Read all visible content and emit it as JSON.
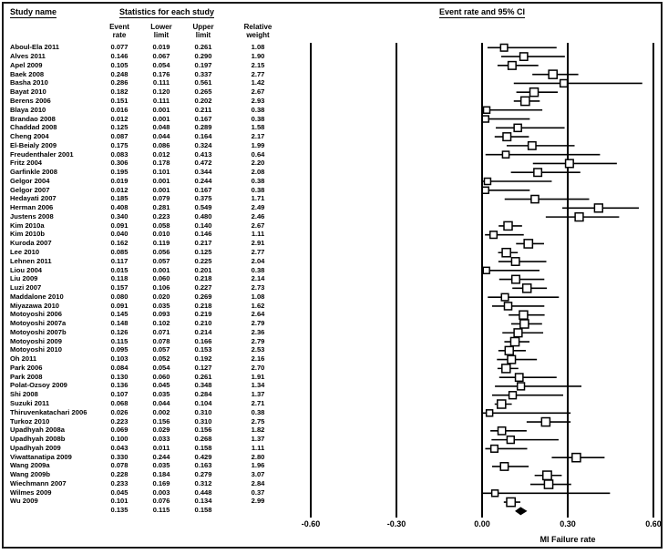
{
  "header": {
    "study_name": "Study name",
    "stats_title": "Statistics for each study",
    "plot_title": "Event rate and 95% CI",
    "columns": {
      "event_rate": "Event\nrate",
      "lower_limit": "Lower\nlimit",
      "upper_limit": "Upper\nlimit",
      "relative_weight": "Relative\nweight"
    }
  },
  "colors": {
    "marker_border": "#000000",
    "marker_fill": "#ffffff",
    "diamond_fill": "#000000",
    "axis_line": "#000000"
  },
  "chart_data": {
    "type": "forest",
    "title": "Event rate and 95% CI",
    "xlabel": "MI Failure rate",
    "xlim": [
      -0.6,
      0.6
    ],
    "x_ticks": [
      -0.6,
      -0.3,
      0.0,
      0.3,
      0.6
    ],
    "x_tick_labels": [
      "-0.60",
      "-0.30",
      "0.00",
      "0.30",
      "0.60"
    ],
    "columns": [
      "Study name",
      "Event rate",
      "Lower limit",
      "Upper limit",
      "Relative weight"
    ],
    "studies": [
      {
        "name": "Aboul-Ela 2011",
        "rate": "0.077",
        "lower": "0.019",
        "upper": "0.261",
        "weight": "1.08"
      },
      {
        "name": "Alves 2011",
        "rate": "0.146",
        "lower": "0.067",
        "upper": "0.290",
        "weight": "1.90"
      },
      {
        "name": "Apel 2009",
        "rate": "0.105",
        "lower": "0.054",
        "upper": "0.197",
        "weight": "2.15"
      },
      {
        "name": "Baek 2008",
        "rate": "0.248",
        "lower": "0.176",
        "upper": "0.337",
        "weight": "2.77"
      },
      {
        "name": "Basha 2010",
        "rate": "0.286",
        "lower": "0.111",
        "upper": "0.561",
        "weight": "1.42"
      },
      {
        "name": "Bayat 2010",
        "rate": "0.182",
        "lower": "0.120",
        "upper": "0.265",
        "weight": "2.67"
      },
      {
        "name": "Berens 2006",
        "rate": "0.151",
        "lower": "0.111",
        "upper": "0.202",
        "weight": "2.93"
      },
      {
        "name": "Blaya 2010",
        "rate": "0.016",
        "lower": "0.001",
        "upper": "0.211",
        "weight": "0.38"
      },
      {
        "name": "Brandao 2008",
        "rate": "0.012",
        "lower": "0.001",
        "upper": "0.167",
        "weight": "0.38"
      },
      {
        "name": "Chaddad 2008",
        "rate": "0.125",
        "lower": "0.048",
        "upper": "0.289",
        "weight": "1.58"
      },
      {
        "name": "Cheng 2004",
        "rate": "0.087",
        "lower": "0.044",
        "upper": "0.164",
        "weight": "2.17"
      },
      {
        "name": "El-Beialy 2009",
        "rate": "0.175",
        "lower": "0.086",
        "upper": "0.324",
        "weight": "1.99"
      },
      {
        "name": "Freudenthaler 2001",
        "rate": "0.083",
        "lower": "0.012",
        "upper": "0.413",
        "weight": "0.64"
      },
      {
        "name": "Fritz 2004",
        "rate": "0.306",
        "lower": "0.178",
        "upper": "0.472",
        "weight": "2.20"
      },
      {
        "name": "Garfinkle 2008",
        "rate": "0.195",
        "lower": "0.101",
        "upper": "0.344",
        "weight": "2.08"
      },
      {
        "name": "Gelgor 2004",
        "rate": "0.019",
        "lower": "0.001",
        "upper": "0.244",
        "weight": "0.38"
      },
      {
        "name": "Gelgor 2007",
        "rate": "0.012",
        "lower": "0.001",
        "upper": "0.167",
        "weight": "0.38"
      },
      {
        "name": "Hedayati 2007",
        "rate": "0.185",
        "lower": "0.079",
        "upper": "0.375",
        "weight": "1.71"
      },
      {
        "name": "Herman 2006",
        "rate": "0.408",
        "lower": "0.281",
        "upper": "0.549",
        "weight": "2.49"
      },
      {
        "name": "Justens 2008",
        "rate": "0.340",
        "lower": "0.223",
        "upper": "0.480",
        "weight": "2.46"
      },
      {
        "name": "Kim 2010a",
        "rate": "0.091",
        "lower": "0.058",
        "upper": "0.140",
        "weight": "2.67"
      },
      {
        "name": "Kim 2010b",
        "rate": "0.040",
        "lower": "0.010",
        "upper": "0.146",
        "weight": "1.11"
      },
      {
        "name": "Kuroda 2007",
        "rate": "0.162",
        "lower": "0.119",
        "upper": "0.217",
        "weight": "2.91"
      },
      {
        "name": "Lee 2010",
        "rate": "0.085",
        "lower": "0.056",
        "upper": "0.125",
        "weight": "2.77"
      },
      {
        "name": "Lehnen 2011",
        "rate": "0.117",
        "lower": "0.057",
        "upper": "0.225",
        "weight": "2.04"
      },
      {
        "name": "Liou 2004",
        "rate": "0.015",
        "lower": "0.001",
        "upper": "0.201",
        "weight": "0.38"
      },
      {
        "name": "Liu 2009",
        "rate": "0.118",
        "lower": "0.060",
        "upper": "0.218",
        "weight": "2.14"
      },
      {
        "name": "Luzi 2007",
        "rate": "0.157",
        "lower": "0.106",
        "upper": "0.227",
        "weight": "2.73"
      },
      {
        "name": "Maddalone 2010",
        "rate": "0.080",
        "lower": "0.020",
        "upper": "0.269",
        "weight": "1.08"
      },
      {
        "name": "Miyazawa 2010",
        "rate": "0.091",
        "lower": "0.035",
        "upper": "0.218",
        "weight": "1.62"
      },
      {
        "name": "Motoyoshi 2006",
        "rate": "0.145",
        "lower": "0.093",
        "upper": "0.219",
        "weight": "2.64"
      },
      {
        "name": "Motoyoshi 2007a",
        "rate": "0.148",
        "lower": "0.102",
        "upper": "0.210",
        "weight": "2.79"
      },
      {
        "name": "Motoyoshi 2007b",
        "rate": "0.126",
        "lower": "0.071",
        "upper": "0.214",
        "weight": "2.36"
      },
      {
        "name": "Motoyoshi 2009",
        "rate": "0.115",
        "lower": "0.078",
        "upper": "0.166",
        "weight": "2.79"
      },
      {
        "name": "Motoyoshi 2010",
        "rate": "0.095",
        "lower": "0.057",
        "upper": "0.153",
        "weight": "2.53"
      },
      {
        "name": "Oh 2011",
        "rate": "0.103",
        "lower": "0.052",
        "upper": "0.192",
        "weight": "2.16"
      },
      {
        "name": "Park 2006",
        "rate": "0.084",
        "lower": "0.054",
        "upper": "0.127",
        "weight": "2.70"
      },
      {
        "name": "Park 2008",
        "rate": "0.130",
        "lower": "0.060",
        "upper": "0.261",
        "weight": "1.91"
      },
      {
        "name": "Polat-Ozsoy 2009",
        "rate": "0.136",
        "lower": "0.045",
        "upper": "0.348",
        "weight": "1.34"
      },
      {
        "name": "Shi 2008",
        "rate": "0.107",
        "lower": "0.035",
        "upper": "0.284",
        "weight": "1.37"
      },
      {
        "name": "Suzuki 2011",
        "rate": "0.068",
        "lower": "0.044",
        "upper": "0.104",
        "weight": "2.71"
      },
      {
        "name": "Thiruvenkatachari 2006",
        "rate": "0.026",
        "lower": "0.002",
        "upper": "0.310",
        "weight": "0.38"
      },
      {
        "name": "Turkoz 2010",
        "rate": "0.223",
        "lower": "0.156",
        "upper": "0.310",
        "weight": "2.75"
      },
      {
        "name": "Upadhyah 2008a",
        "rate": "0.069",
        "lower": "0.029",
        "upper": "0.156",
        "weight": "1.82"
      },
      {
        "name": "Upadhyah 2008b",
        "rate": "0.100",
        "lower": "0.033",
        "upper": "0.268",
        "weight": "1.37"
      },
      {
        "name": "Upadhyah 2009",
        "rate": "0.043",
        "lower": "0.011",
        "upper": "0.158",
        "weight": "1.11"
      },
      {
        "name": "Viwattanatipa 2009",
        "rate": "0.330",
        "lower": "0.244",
        "upper": "0.429",
        "weight": "2.80"
      },
      {
        "name": "Wang 2009a",
        "rate": "0.078",
        "lower": "0.035",
        "upper": "0.163",
        "weight": "1.96"
      },
      {
        "name": "Wang 2009b",
        "rate": "0.228",
        "lower": "0.184",
        "upper": "0.279",
        "weight": "3.07"
      },
      {
        "name": "Wiechmann 2007",
        "rate": "0.233",
        "lower": "0.169",
        "upper": "0.312",
        "weight": "2.84"
      },
      {
        "name": "Wilmes 2009",
        "rate": "0.045",
        "lower": "0.003",
        "upper": "0.448",
        "weight": "0.37"
      },
      {
        "name": "Wu 2009",
        "rate": "0.101",
        "lower": "0.076",
        "upper": "0.134",
        "weight": "2.99"
      }
    ],
    "summary": {
      "rate": "0.135",
      "lower": "0.115",
      "upper": "0.158"
    }
  }
}
